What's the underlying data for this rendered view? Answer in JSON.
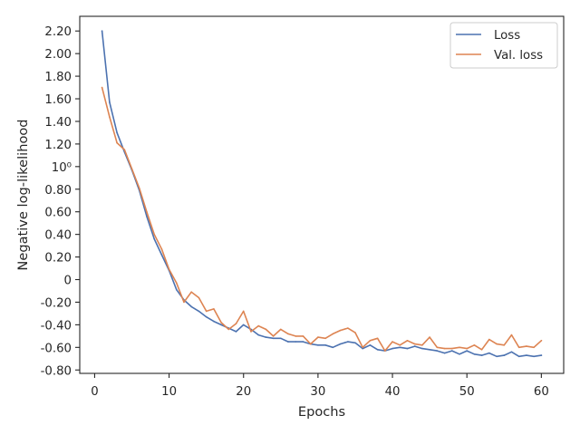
{
  "chart_data": {
    "type": "line",
    "xlabel": "Epochs",
    "ylabel": "Negative log-likelihood",
    "xlim": [
      -2,
      63
    ],
    "ylim": [
      -0.83,
      2.33
    ],
    "xticks": [
      0,
      10,
      20,
      30,
      40,
      50,
      60
    ],
    "yticks": [
      {
        "value": -0.8,
        "label": "-0.80"
      },
      {
        "value": -0.6,
        "label": "-0.60"
      },
      {
        "value": -0.4,
        "label": "-0.40"
      },
      {
        "value": -0.2,
        "label": "-0.20"
      },
      {
        "value": 0.0,
        "label": "0"
      },
      {
        "value": 0.2,
        "label": "0.20"
      },
      {
        "value": 0.4,
        "label": "0.40"
      },
      {
        "value": 0.6,
        "label": "0.60"
      },
      {
        "value": 0.8,
        "label": "0.80"
      },
      {
        "value": 1.0,
        "label": "10⁰"
      },
      {
        "value": 1.2,
        "label": "1.20"
      },
      {
        "value": 1.4,
        "label": "1.40"
      },
      {
        "value": 1.6,
        "label": "1.60"
      },
      {
        "value": 1.8,
        "label": "1.80"
      },
      {
        "value": 2.0,
        "label": "2.00"
      },
      {
        "value": 2.2,
        "label": "2.20"
      }
    ],
    "legend_position": "top-right",
    "grid": false,
    "x": [
      1,
      2,
      3,
      4,
      5,
      6,
      7,
      8,
      9,
      10,
      11,
      12,
      13,
      14,
      15,
      16,
      17,
      18,
      19,
      20,
      21,
      22,
      23,
      24,
      25,
      26,
      27,
      28,
      29,
      30,
      31,
      32,
      33,
      34,
      35,
      36,
      37,
      38,
      39,
      40,
      41,
      42,
      43,
      44,
      45,
      46,
      47,
      48,
      49,
      50,
      51,
      52,
      53,
      54,
      55,
      56,
      57,
      58,
      59,
      60
    ],
    "series": [
      {
        "name": "Loss",
        "color": "#4c72b0",
        "values": [
          2.2,
          1.57,
          1.3,
          1.13,
          0.97,
          0.79,
          0.56,
          0.36,
          0.22,
          0.08,
          -0.09,
          -0.18,
          -0.24,
          -0.28,
          -0.33,
          -0.37,
          -0.4,
          -0.43,
          -0.46,
          -0.4,
          -0.44,
          -0.49,
          -0.51,
          -0.52,
          -0.52,
          -0.55,
          -0.55,
          -0.55,
          -0.57,
          -0.58,
          -0.58,
          -0.6,
          -0.57,
          -0.55,
          -0.56,
          -0.61,
          -0.58,
          -0.62,
          -0.63,
          -0.61,
          -0.6,
          -0.61,
          -0.59,
          -0.61,
          -0.62,
          -0.63,
          -0.65,
          -0.63,
          -0.66,
          -0.63,
          -0.66,
          -0.67,
          -0.65,
          -0.68,
          -0.67,
          -0.64,
          -0.68,
          -0.67,
          -0.68,
          -0.67
        ]
      },
      {
        "name": "Val. loss",
        "color": "#dd8452",
        "values": [
          1.7,
          1.44,
          1.21,
          1.15,
          0.98,
          0.81,
          0.6,
          0.4,
          0.27,
          0.09,
          -0.03,
          -0.2,
          -0.11,
          -0.16,
          -0.28,
          -0.26,
          -0.38,
          -0.44,
          -0.39,
          -0.28,
          -0.46,
          -0.41,
          -0.44,
          -0.5,
          -0.44,
          -0.48,
          -0.5,
          -0.5,
          -0.57,
          -0.51,
          -0.52,
          -0.48,
          -0.45,
          -0.43,
          -0.47,
          -0.6,
          -0.54,
          -0.52,
          -0.63,
          -0.55,
          -0.58,
          -0.54,
          -0.57,
          -0.58,
          -0.51,
          -0.6,
          -0.61,
          -0.61,
          -0.6,
          -0.61,
          -0.58,
          -0.62,
          -0.53,
          -0.57,
          -0.58,
          -0.49,
          -0.6,
          -0.59,
          -0.6,
          -0.54
        ]
      }
    ]
  }
}
